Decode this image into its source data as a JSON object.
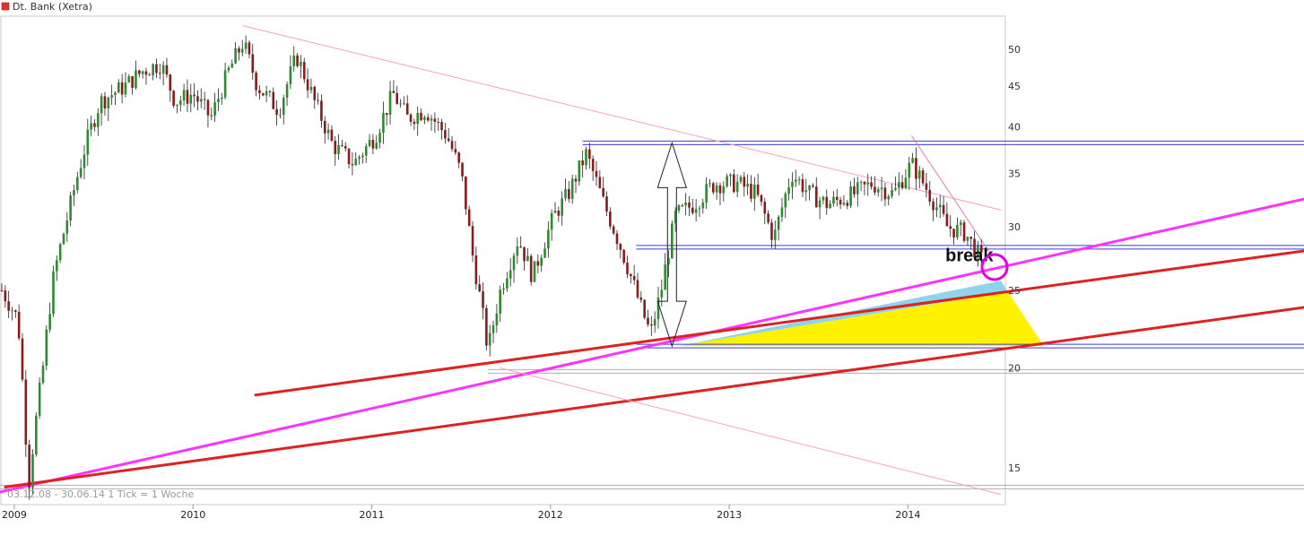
{
  "chart_data": {
    "type": "candlestick",
    "title": "Dt. Bank (Xetra)",
    "legend": [
      {
        "label": "Dt. Bank (Xetra)",
        "color": "#e03030"
      }
    ],
    "info": "03.12.08 - 30.06.14   1 Tick = 1 Woche",
    "y_scale": "log",
    "ylim": [
      13.5,
      55
    ],
    "y_ticks": [
      15,
      20,
      25,
      30,
      35,
      40,
      45,
      50
    ],
    "x_ticks": [
      "2009",
      "2010",
      "2011",
      "2012",
      "2013",
      "2014"
    ],
    "xlim": [
      2008.92,
      2014.52
    ],
    "grid": false,
    "colors": {
      "up": "#2e8b2e",
      "down": "#8b1a1a",
      "wick": "#222222"
    },
    "price_path": [
      [
        2008.93,
        25
      ],
      [
        2009.02,
        23
      ],
      [
        2009.08,
        14.2
      ],
      [
        2009.16,
        20
      ],
      [
        2009.22,
        26
      ],
      [
        2009.3,
        31
      ],
      [
        2009.4,
        38
      ],
      [
        2009.48,
        43
      ],
      [
        2009.62,
        45
      ],
      [
        2009.72,
        47
      ],
      [
        2009.82,
        48
      ],
      [
        2009.9,
        43
      ],
      [
        2010.0,
        44
      ],
      [
        2010.1,
        41
      ],
      [
        2010.2,
        47
      ],
      [
        2010.28,
        51
      ],
      [
        2010.36,
        45
      ],
      [
        2010.48,
        42
      ],
      [
        2010.58,
        49
      ],
      [
        2010.68,
        43
      ],
      [
        2010.78,
        38
      ],
      [
        2010.9,
        36
      ],
      [
        2011.02,
        39
      ],
      [
        2011.12,
        44
      ],
      [
        2011.2,
        41
      ],
      [
        2011.3,
        42
      ],
      [
        2011.42,
        39
      ],
      [
        2011.5,
        35
      ],
      [
        2011.56,
        28
      ],
      [
        2011.65,
        21
      ],
      [
        2011.72,
        25
      ],
      [
        2011.82,
        29
      ],
      [
        2011.9,
        26
      ],
      [
        2012.02,
        31
      ],
      [
        2012.1,
        33
      ],
      [
        2012.2,
        37
      ],
      [
        2012.3,
        32
      ],
      [
        2012.4,
        28
      ],
      [
        2012.5,
        24
      ],
      [
        2012.56,
        22
      ],
      [
        2012.62,
        25
      ],
      [
        2012.7,
        31
      ],
      [
        2012.8,
        32
      ],
      [
        2012.92,
        34
      ],
      [
        2013.05,
        34
      ],
      [
        2013.15,
        33
      ],
      [
        2013.25,
        29
      ],
      [
        2013.35,
        35
      ],
      [
        2013.45,
        33
      ],
      [
        2013.55,
        32
      ],
      [
        2013.7,
        33
      ],
      [
        2013.8,
        34
      ],
      [
        2013.92,
        33
      ],
      [
        2014.02,
        36
      ],
      [
        2014.12,
        33
      ],
      [
        2014.22,
        30
      ],
      [
        2014.32,
        29.5
      ],
      [
        2014.42,
        27
      ]
    ],
    "annotations": [
      {
        "text": "break",
        "x": 2014.35,
        "y": 27.6
      },
      {
        "type": "circle",
        "x": 2014.49,
        "y": 26.8
      },
      {
        "type": "channel_top",
        "from": [
          2012.18,
          38.2
        ],
        "to": [
          2014.52,
          38.2
        ]
      },
      {
        "type": "channel_bottom",
        "from": [
          2012.48,
          28.3
        ],
        "to": [
          2014.52,
          28.3
        ]
      },
      {
        "type": "support",
        "from": [
          2012.48,
          21.3
        ],
        "to": [
          2014.52,
          21.3
        ]
      },
      {
        "type": "support",
        "from": [
          2008.92,
          14.2
        ],
        "to": [
          2014.52,
          14.2
        ]
      },
      {
        "type": "support",
        "from": [
          2011.65,
          19.8
        ],
        "to": [
          2014.52,
          19.8
        ]
      }
    ],
    "trendlines": [
      {
        "color": "#ff33ff",
        "from": [
          2008.92,
          14.0
        ],
        "to": [
          2014.52,
          32.5
        ]
      },
      {
        "color": "#dd2222",
        "from": [
          2008.95,
          14.2
        ],
        "to": [
          2014.52,
          23.8
        ]
      },
      {
        "color": "#dd2222",
        "from": [
          2010.35,
          18.5
        ],
        "to": [
          2014.52,
          28.0
        ]
      },
      {
        "color": "#f4a0c0",
        "from": [
          2010.28,
          53.5
        ],
        "to": [
          2014.52,
          31.5
        ]
      },
      {
        "color": "#f4a0c0",
        "from": [
          2011.72,
          20.0
        ],
        "to": [
          2014.52,
          13.9
        ]
      }
    ],
    "fills": [
      {
        "color": "#8ed4ec",
        "points": [
          [
            2012.72,
            21.3
          ],
          [
            2014.52,
            25.7
          ],
          [
            2014.56,
            24.9
          ]
        ]
      },
      {
        "color": "#fff200",
        "points": [
          [
            2012.72,
            21.3
          ],
          [
            2014.56,
            24.9
          ],
          [
            2014.76,
            21.3
          ]
        ]
      }
    ],
    "arrow": {
      "x": 2012.68,
      "top": 38.2,
      "bottom": 21.3
    }
  }
}
